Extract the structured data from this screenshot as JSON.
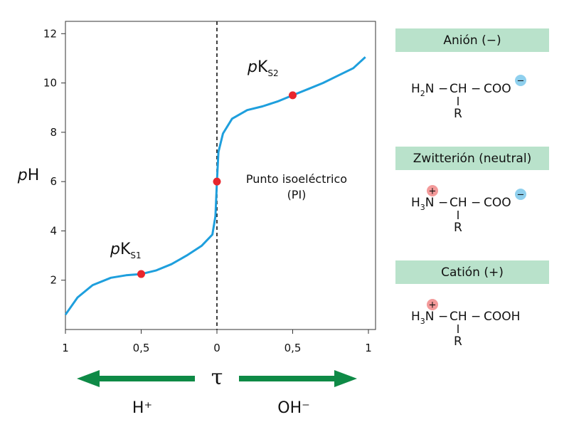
{
  "chart_data": {
    "type": "line",
    "ylabel": "pH",
    "xlabel": "τ",
    "ylim": [
      0,
      12.5
    ],
    "y_ticks": [
      "2",
      "4",
      "6",
      "8",
      "10",
      "12"
    ],
    "x_tick_labels": [
      "1",
      "0,5",
      "0",
      "0,5",
      "1"
    ],
    "series": [
      {
        "points": [
          [
            -1.0,
            0.6
          ],
          [
            -0.92,
            1.3
          ],
          [
            -0.82,
            1.8
          ],
          [
            -0.7,
            2.1
          ],
          [
            -0.6,
            2.2
          ],
          [
            -0.5,
            2.25
          ],
          [
            -0.4,
            2.4
          ],
          [
            -0.3,
            2.65
          ],
          [
            -0.2,
            3.0
          ],
          [
            -0.1,
            3.4
          ],
          [
            -0.03,
            3.85
          ],
          [
            -0.01,
            4.6
          ],
          [
            0.0,
            6.0
          ],
          [
            0.01,
            7.2
          ],
          [
            0.04,
            7.95
          ],
          [
            0.1,
            8.55
          ],
          [
            0.2,
            8.9
          ],
          [
            0.3,
            9.05
          ],
          [
            0.4,
            9.25
          ],
          [
            0.5,
            9.5
          ],
          [
            0.6,
            9.75
          ],
          [
            0.7,
            10.0
          ],
          [
            0.8,
            10.3
          ],
          [
            0.9,
            10.6
          ],
          [
            0.98,
            11.05
          ]
        ]
      }
    ],
    "markers": [
      {
        "x": -0.5,
        "y": 2.25,
        "label": "pK",
        "sub": "S1"
      },
      {
        "x": 0.0,
        "y": 6.0,
        "label": "Punto isoeléctrico",
        "label2": "(PI)"
      },
      {
        "x": 0.5,
        "y": 9.5,
        "label": "pK",
        "sub": "S2"
      }
    ],
    "arrows": {
      "left": "H⁺",
      "right": "OH⁻"
    },
    "colors": {
      "curve": "#1e9fdd",
      "marker": "#e8262d",
      "arrow": "#0e8a46"
    }
  },
  "forms": [
    {
      "header": "Anión (−)",
      "left_prefix": "H",
      "left_sub": "2",
      "left_main": "N",
      "acid": "COO",
      "charge_right": "−",
      "charge_left": ""
    },
    {
      "header": "Zwitterión (neutral)",
      "left_prefix": "H",
      "left_sub": "3",
      "left_main": "N",
      "acid": "COO",
      "charge_right": "−",
      "charge_left": "+"
    },
    {
      "header": "Catión (+)",
      "left_prefix": "H",
      "left_sub": "3",
      "left_main": "N",
      "acid": "COOH",
      "charge_right": "",
      "charge_left": "+"
    }
  ],
  "formula_common": {
    "dash": "−",
    "ch": "CH",
    "r": "R"
  },
  "form_colors": {
    "header_bg": "#b9e2cb",
    "anion_badge": "#8fd0ee",
    "cation_badge": "#f39a9a"
  }
}
